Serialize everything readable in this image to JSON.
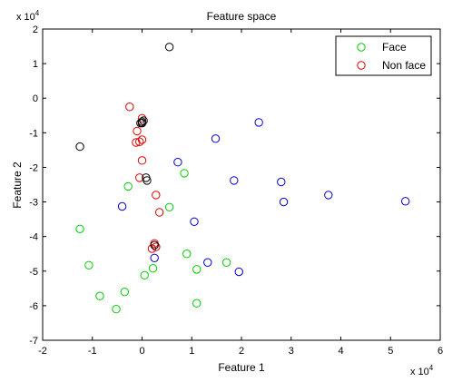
{
  "chart_data": {
    "type": "scatter",
    "title": "Feature space",
    "xlabel": "Feature 1",
    "ylabel": "Feature 2",
    "xlim": [
      -2,
      6
    ],
    "ylim": [
      -7,
      2
    ],
    "x_ticks": [
      "-2",
      "-1",
      "0",
      "1",
      "2",
      "3",
      "4",
      "5",
      "6"
    ],
    "y_ticks": [
      "2",
      "1",
      "0",
      "-1",
      "-2",
      "-3",
      "-4",
      "-5",
      "-6",
      "-7"
    ],
    "x_multiplier": {
      "base": "x 10",
      "exp": "4"
    },
    "y_multiplier": {
      "base": "x 10",
      "exp": "4"
    },
    "grid": false,
    "legend_position": "top-right",
    "series": [
      {
        "name": "Face",
        "color": "#00cc00",
        "x": [
          -0.28,
          0.55,
          0.85,
          -1.25,
          -1.07,
          -0.85,
          -0.35,
          -0.52,
          0.05,
          0.22,
          0.9,
          1.1,
          1.1,
          1.7
        ],
        "y": [
          -2.55,
          -3.15,
          -2.17,
          -3.78,
          -4.83,
          -5.72,
          -5.6,
          -6.1,
          -5.12,
          -4.92,
          -4.5,
          -4.95,
          -5.93,
          -4.75
        ]
      },
      {
        "name": "Non face",
        "color": "#dd0000",
        "x": [
          -0.25,
          0.0,
          -0.1,
          -0.12,
          0.0,
          -0.05,
          0.0,
          -0.05,
          0.28,
          0.35,
          0.25,
          0.2,
          0.28
        ],
        "y": [
          -0.25,
          -0.58,
          -0.95,
          -1.28,
          -1.2,
          -1.26,
          -1.8,
          -2.3,
          -2.8,
          -3.3,
          -4.2,
          -4.35,
          -4.3
        ]
      },
      {
        "name": "",
        "color": "#0000cc",
        "x": [
          2.35,
          1.48,
          0.72,
          1.85,
          2.8,
          2.85,
          3.75,
          5.3,
          1.05,
          -0.4,
          0.25,
          1.32,
          1.95
        ],
        "y": [
          -0.7,
          -1.17,
          -1.85,
          -2.38,
          -2.42,
          -3.0,
          -2.8,
          -2.98,
          -3.57,
          -3.13,
          -4.62,
          -4.75,
          -5.02
        ]
      },
      {
        "name": "",
        "color": "#000000",
        "x": [
          0.55,
          -1.25,
          0.0,
          -0.03,
          0.03,
          0.0,
          0.08,
          0.1,
          0.25
        ],
        "y": [
          1.48,
          -1.4,
          -0.68,
          -0.72,
          -0.65,
          -0.72,
          -2.3,
          -2.38,
          -4.25
        ]
      }
    ]
  }
}
